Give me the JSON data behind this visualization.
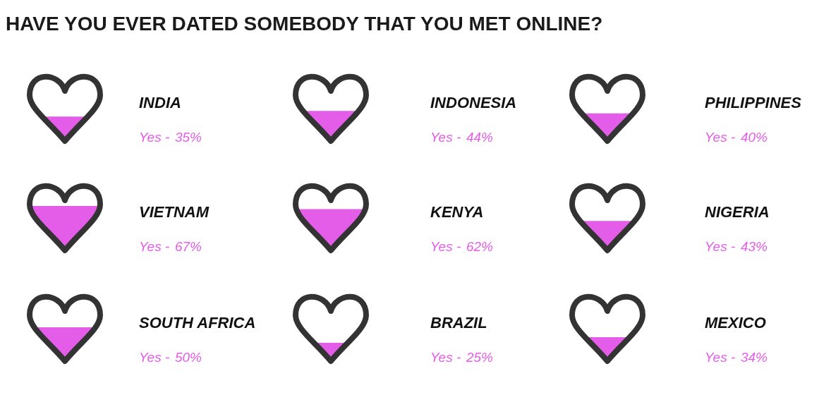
{
  "chart_data": {
    "type": "other",
    "title": "HAVE YOU EVER DATED SOMEBODY THAT YOU MET ONLINE?",
    "categories": [
      "INDIA",
      "INDONESIA",
      "PHILIPPINES",
      "VIETNAM",
      "KENYA",
      "NIGERIA",
      "SOUTH AFRICA",
      "BRAZIL",
      "MEXICO"
    ],
    "series": [
      {
        "name": "Yes -",
        "color": "#e45de9",
        "values": [
          35,
          44,
          40,
          67,
          62,
          43,
          50,
          25,
          34
        ],
        "value_labels": [
          "35%",
          "44%",
          "40%",
          "67%",
          "62%",
          "43%",
          "50%",
          "25%",
          "34%"
        ]
      }
    ]
  }
}
